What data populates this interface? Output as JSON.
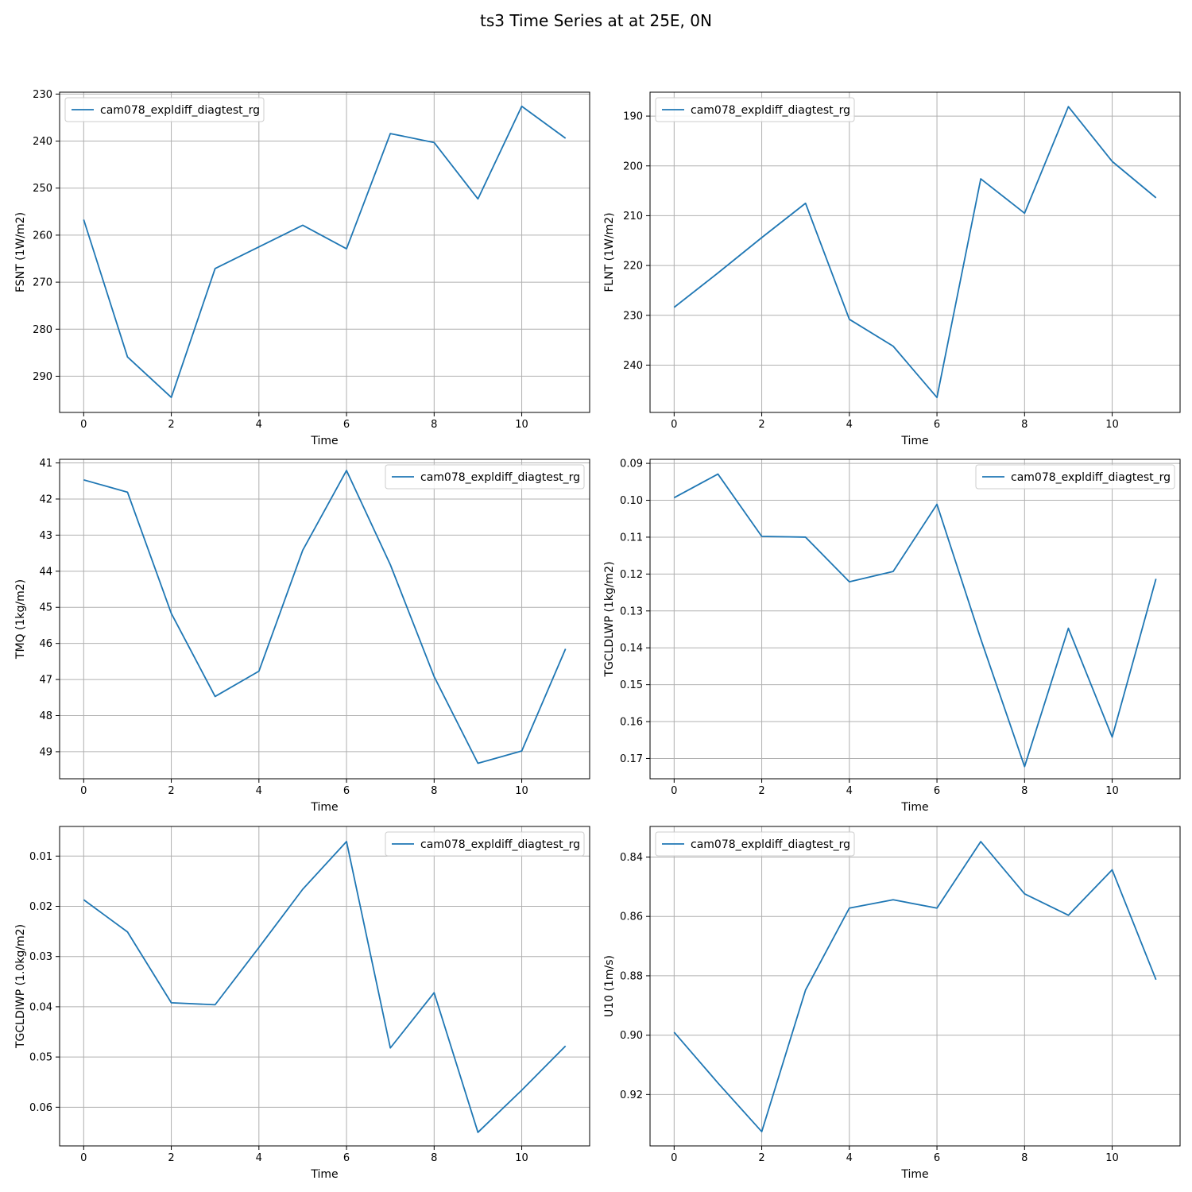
{
  "figure": {
    "title": "ts3 Time Series at at 25E, 0N"
  },
  "chart_data": [
    {
      "type": "line",
      "title": "",
      "xlabel": "Time",
      "ylabel": "FSNT (1W/m2)",
      "xlim": [
        -0.55,
        11.55
      ],
      "ylim": [
        297.7,
        229.6
      ],
      "y_inverted": true,
      "xticks": [
        0,
        2,
        4,
        6,
        8,
        10
      ],
      "yticks": [
        230,
        240,
        250,
        260,
        270,
        280,
        290
      ],
      "ytick_labels": [
        "230",
        "240",
        "250",
        "260",
        "270",
        "280",
        "290"
      ],
      "grid": true,
      "legend_position": "upper-left",
      "series": [
        {
          "name": "cam078_expldiff_diagtest_rg",
          "x": [
            0,
            1,
            2,
            3,
            4,
            5,
            6,
            7,
            8,
            9,
            10,
            11
          ],
          "y": [
            256.7,
            285.9,
            294.5,
            267.1,
            262.5,
            257.9,
            262.9,
            238.4,
            240.3,
            252.3,
            232.6,
            239.4
          ]
        }
      ]
    },
    {
      "type": "line",
      "title": "",
      "xlabel": "Time",
      "ylabel": "FLNT (1W/m2)",
      "xlim": [
        -0.55,
        11.55
      ],
      "ylim": [
        249.5,
        185.2
      ],
      "y_inverted": true,
      "xticks": [
        0,
        2,
        4,
        6,
        8,
        10
      ],
      "yticks": [
        190,
        200,
        210,
        220,
        230,
        240
      ],
      "ytick_labels": [
        "190",
        "200",
        "210",
        "220",
        "230",
        "240"
      ],
      "grid": true,
      "legend_position": "upper-left",
      "series": [
        {
          "name": "cam078_expldiff_diagtest_rg",
          "x": [
            0,
            1,
            2,
            3,
            4,
            5,
            6,
            7,
            8,
            9,
            10,
            11
          ],
          "y": [
            228.4,
            221.5,
            214.4,
            207.5,
            230.8,
            236.2,
            246.5,
            202.6,
            209.5,
            188.1,
            199.1,
            206.4
          ]
        }
      ]
    },
    {
      "type": "line",
      "title": "",
      "xlabel": "Time",
      "ylabel": "TMQ (1kg/m2)",
      "xlim": [
        -0.55,
        11.55
      ],
      "ylim": [
        49.75,
        40.9
      ],
      "y_inverted": true,
      "xticks": [
        0,
        2,
        4,
        6,
        8,
        10
      ],
      "yticks": [
        41,
        42,
        43,
        44,
        45,
        46,
        47,
        48,
        49
      ],
      "ytick_labels": [
        "41",
        "42",
        "43",
        "44",
        "45",
        "46",
        "47",
        "48",
        "49"
      ],
      "grid": true,
      "legend_position": "upper-right",
      "series": [
        {
          "name": "cam078_expldiff_diagtest_rg",
          "x": [
            0,
            1,
            2,
            3,
            4,
            5,
            6,
            7,
            8,
            9,
            10,
            11
          ],
          "y": [
            41.47,
            41.81,
            45.17,
            47.47,
            46.77,
            43.42,
            41.21,
            43.82,
            46.92,
            49.32,
            48.98,
            46.15
          ]
        }
      ]
    },
    {
      "type": "line",
      "title": "",
      "xlabel": "Time",
      "ylabel": "TGCLDLWP (1kg/m2)",
      "xlim": [
        -0.55,
        11.55
      ],
      "ylim": [
        0.1755,
        0.0889
      ],
      "y_inverted": true,
      "xticks": [
        0,
        2,
        4,
        6,
        8,
        10
      ],
      "yticks": [
        0.09,
        0.1,
        0.11,
        0.12,
        0.13,
        0.14,
        0.15,
        0.16,
        0.17
      ],
      "ytick_labels": [
        "0.09",
        "0.10",
        "0.11",
        "0.12",
        "0.13",
        "0.14",
        "0.15",
        "0.16",
        "0.17"
      ],
      "grid": true,
      "legend_position": "upper-right",
      "series": [
        {
          "name": "cam078_expldiff_diagtest_rg",
          "x": [
            0,
            1,
            2,
            3,
            4,
            5,
            6,
            7,
            8,
            9,
            10,
            11
          ],
          "y": [
            0.0993,
            0.0929,
            0.1098,
            0.11,
            0.1221,
            0.1193,
            0.1011,
            0.1376,
            0.1722,
            0.1347,
            0.1642,
            0.1213
          ]
        }
      ]
    },
    {
      "type": "line",
      "title": "",
      "xlabel": "Time",
      "ylabel": "TGCLDIWP (1.0kg/m2)",
      "xlim": [
        -0.55,
        11.55
      ],
      "ylim": [
        0.0677,
        0.0041
      ],
      "y_inverted": true,
      "xticks": [
        0,
        2,
        4,
        6,
        8,
        10
      ],
      "yticks": [
        0.01,
        0.02,
        0.03,
        0.04,
        0.05,
        0.06
      ],
      "ytick_labels": [
        "0.01",
        "0.02",
        "0.03",
        "0.04",
        "0.05",
        "0.06"
      ],
      "grid": true,
      "legend_position": "upper-right",
      "series": [
        {
          "name": "cam078_expldiff_diagtest_rg",
          "x": [
            0,
            1,
            2,
            3,
            4,
            5,
            6,
            7,
            8,
            9,
            10,
            11
          ],
          "y": [
            0.0187,
            0.0251,
            0.0392,
            0.0396,
            0.0282,
            0.0166,
            0.0071,
            0.0482,
            0.0372,
            0.065,
            0.0566,
            0.0478
          ]
        }
      ]
    },
    {
      "type": "line",
      "title": "",
      "xlabel": "Time",
      "ylabel": "U10 (1m/s)",
      "xlim": [
        -0.55,
        11.55
      ],
      "ylim": [
        0.9373,
        0.8297
      ],
      "y_inverted": true,
      "xticks": [
        0,
        2,
        4,
        6,
        8,
        10
      ],
      "yticks": [
        0.84,
        0.86,
        0.88,
        0.9,
        0.92
      ],
      "ytick_labels": [
        "0.84",
        "0.86",
        "0.88",
        "0.90",
        "0.92"
      ],
      "grid": true,
      "legend_position": "upper-left",
      "series": [
        {
          "name": "cam078_expldiff_diagtest_rg",
          "x": [
            0,
            1,
            2,
            3,
            4,
            5,
            6,
            7,
            8,
            9,
            10,
            11
          ],
          "y": [
            0.899,
            0.9161,
            0.9325,
            0.8848,
            0.8572,
            0.8544,
            0.8572,
            0.8348,
            0.8524,
            0.8596,
            0.8443,
            0.8813
          ]
        }
      ]
    }
  ]
}
